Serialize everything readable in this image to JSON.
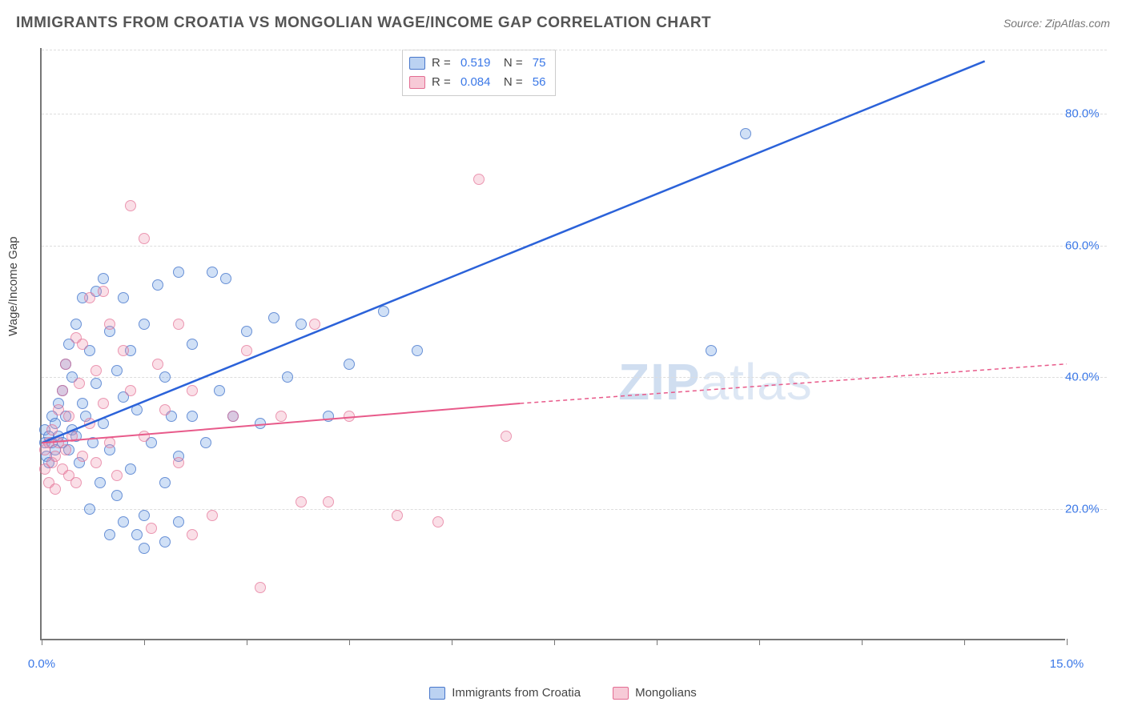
{
  "title": "IMMIGRANTS FROM CROATIA VS MONGOLIAN WAGE/INCOME GAP CORRELATION CHART",
  "source": "Source: ZipAtlas.com",
  "ylabel": "Wage/Income Gap",
  "watermark_prefix": "ZIP",
  "watermark_suffix": "atlas",
  "chart": {
    "type": "scatter",
    "xlim": [
      0,
      15
    ],
    "ylim": [
      0,
      90
    ],
    "xtick_positions": [
      0,
      1.5,
      3.0,
      4.5,
      6.0,
      7.5,
      9.0,
      10.5,
      12.0,
      13.5,
      15.0
    ],
    "xtick_labels_shown": {
      "0": "0.0%",
      "15": "15.0%"
    },
    "ytick_values": [
      20,
      40,
      60,
      80
    ],
    "ytick_labels": [
      "20.0%",
      "40.0%",
      "60.0%",
      "80.0%"
    ],
    "grid_color": "#dddddd",
    "axis_color": "#777777",
    "tick_label_color": "#3b78e7",
    "tick_label_fontsize": 15,
    "background_color": "#ffffff",
    "point_radius": 7,
    "series": [
      {
        "name": "Immigrants from Croatia",
        "key": "blue",
        "fill": "rgba(120,165,230,0.35)",
        "stroke": "rgba(60,110,200,0.7)",
        "R": "0.519",
        "N": "75",
        "trend": {
          "x1": 0,
          "y1": 30,
          "x2": 13.8,
          "y2": 88,
          "dash": false,
          "stroke": "#2b62d9",
          "stroke_width": 2.5
        },
        "points": [
          [
            0.05,
            30
          ],
          [
            0.05,
            32
          ],
          [
            0.07,
            28
          ],
          [
            0.1,
            31
          ],
          [
            0.1,
            27
          ],
          [
            0.15,
            30
          ],
          [
            0.15,
            34
          ],
          [
            0.2,
            29
          ],
          [
            0.2,
            33
          ],
          [
            0.25,
            31
          ],
          [
            0.25,
            36
          ],
          [
            0.3,
            30
          ],
          [
            0.3,
            38
          ],
          [
            0.35,
            34
          ],
          [
            0.35,
            42
          ],
          [
            0.4,
            29
          ],
          [
            0.4,
            45
          ],
          [
            0.45,
            32
          ],
          [
            0.45,
            40
          ],
          [
            0.5,
            31
          ],
          [
            0.5,
            48
          ],
          [
            0.55,
            27
          ],
          [
            0.6,
            36
          ],
          [
            0.6,
            52
          ],
          [
            0.65,
            34
          ],
          [
            0.7,
            44
          ],
          [
            0.75,
            30
          ],
          [
            0.8,
            39
          ],
          [
            0.8,
            53
          ],
          [
            0.85,
            24
          ],
          [
            0.9,
            33
          ],
          [
            0.9,
            55
          ],
          [
            1.0,
            29
          ],
          [
            1.0,
            47
          ],
          [
            1.1,
            22
          ],
          [
            1.1,
            41
          ],
          [
            1.2,
            37
          ],
          [
            1.2,
            52
          ],
          [
            1.3,
            26
          ],
          [
            1.3,
            44
          ],
          [
            1.4,
            35
          ],
          [
            1.5,
            19
          ],
          [
            1.5,
            48
          ],
          [
            1.6,
            30
          ],
          [
            1.7,
            54
          ],
          [
            1.8,
            15
          ],
          [
            1.8,
            40
          ],
          [
            1.9,
            34
          ],
          [
            2.0,
            28
          ],
          [
            2.0,
            56
          ],
          [
            2.2,
            34
          ],
          [
            2.2,
            45
          ],
          [
            2.4,
            30
          ],
          [
            2.5,
            56
          ],
          [
            2.6,
            38
          ],
          [
            2.7,
            55
          ],
          [
            2.8,
            34
          ],
          [
            3.0,
            47
          ],
          [
            3.2,
            33
          ],
          [
            3.4,
            49
          ],
          [
            3.6,
            40
          ],
          [
            3.8,
            48
          ],
          [
            4.2,
            34
          ],
          [
            4.5,
            42
          ],
          [
            5.0,
            50
          ],
          [
            5.5,
            44
          ],
          [
            9.8,
            44
          ],
          [
            10.3,
            77
          ],
          [
            0.7,
            20
          ],
          [
            1.2,
            18
          ],
          [
            1.5,
            14
          ],
          [
            1.8,
            24
          ],
          [
            2.0,
            18
          ],
          [
            1.4,
            16
          ],
          [
            1.0,
            16
          ]
        ]
      },
      {
        "name": "Mongolians",
        "key": "pink",
        "fill": "rgba(240,150,175,0.3)",
        "stroke": "rgba(225,100,140,0.6)",
        "R": "0.084",
        "N": "56",
        "trend": {
          "x1": 0,
          "y1": 30,
          "x2": 7.0,
          "y2": 36,
          "dash": false,
          "stroke": "#e85a8a",
          "stroke_width": 2
        },
        "trend_extrapolate": {
          "x1": 7.0,
          "y1": 36,
          "x2": 15.0,
          "y2": 42,
          "dash": true,
          "stroke": "#e85a8a",
          "stroke_width": 1.5
        },
        "points": [
          [
            0.05,
            29
          ],
          [
            0.05,
            26
          ],
          [
            0.1,
            30
          ],
          [
            0.1,
            24
          ],
          [
            0.15,
            27
          ],
          [
            0.15,
            32
          ],
          [
            0.2,
            28
          ],
          [
            0.2,
            23
          ],
          [
            0.25,
            30
          ],
          [
            0.25,
            35
          ],
          [
            0.3,
            26
          ],
          [
            0.3,
            38
          ],
          [
            0.35,
            29
          ],
          [
            0.35,
            42
          ],
          [
            0.4,
            25
          ],
          [
            0.4,
            34
          ],
          [
            0.45,
            31
          ],
          [
            0.5,
            46
          ],
          [
            0.5,
            24
          ],
          [
            0.55,
            39
          ],
          [
            0.6,
            28
          ],
          [
            0.6,
            45
          ],
          [
            0.7,
            33
          ],
          [
            0.7,
            52
          ],
          [
            0.8,
            27
          ],
          [
            0.8,
            41
          ],
          [
            0.9,
            36
          ],
          [
            0.9,
            53
          ],
          [
            1.0,
            30
          ],
          [
            1.0,
            48
          ],
          [
            1.1,
            25
          ],
          [
            1.2,
            44
          ],
          [
            1.3,
            38
          ],
          [
            1.3,
            66
          ],
          [
            1.5,
            31
          ],
          [
            1.5,
            61
          ],
          [
            1.7,
            42
          ],
          [
            1.8,
            35
          ],
          [
            2.0,
            27
          ],
          [
            2.0,
            48
          ],
          [
            2.2,
            38
          ],
          [
            2.5,
            19
          ],
          [
            2.8,
            34
          ],
          [
            3.0,
            44
          ],
          [
            3.2,
            8
          ],
          [
            3.5,
            34
          ],
          [
            3.8,
            21
          ],
          [
            4.0,
            48
          ],
          [
            4.2,
            21
          ],
          [
            4.5,
            34
          ],
          [
            5.2,
            19
          ],
          [
            5.8,
            18
          ],
          [
            6.4,
            70
          ],
          [
            6.8,
            31
          ],
          [
            1.6,
            17
          ],
          [
            2.2,
            16
          ]
        ]
      }
    ]
  },
  "bottom_legend": [
    {
      "key": "blue",
      "label": "Immigrants from Croatia"
    },
    {
      "key": "pink",
      "label": "Mongolians"
    }
  ]
}
